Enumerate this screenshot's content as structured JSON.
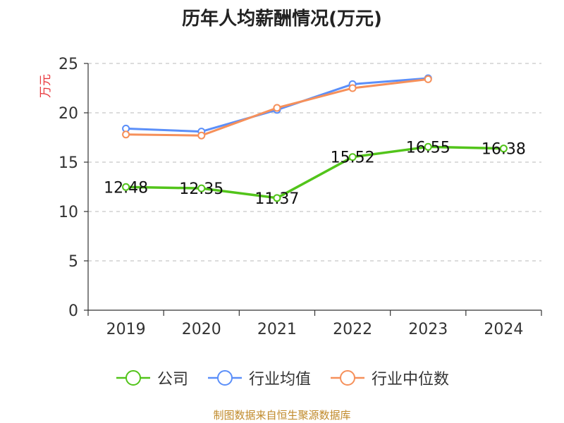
{
  "chart_data": {
    "type": "line",
    "title": "历年人均薪酬情况(万元)",
    "ylabel": "万元",
    "xlabel": "",
    "categories": [
      "2019",
      "2020",
      "2021",
      "2022",
      "2023",
      "2024"
    ],
    "ylim": [
      0,
      25
    ],
    "yticks": [
      0,
      5,
      10,
      15,
      20,
      25
    ],
    "grid": "horizontal-dashed",
    "legend_position": "bottom",
    "series": [
      {
        "name": "公司",
        "color": "#52c41a",
        "values": [
          12.48,
          12.35,
          11.37,
          15.52,
          16.55,
          16.38
        ],
        "labels": [
          "12.48",
          "12.35",
          "11.37",
          "15.52",
          "16.55",
          "16.38"
        ]
      },
      {
        "name": "行业均值",
        "color": "#5b8ff9",
        "values": [
          18.4,
          18.1,
          20.3,
          22.9,
          23.5,
          null
        ]
      },
      {
        "name": "行业中位数",
        "color": "#f6905a",
        "values": [
          17.8,
          17.7,
          20.5,
          22.5,
          23.4,
          null
        ]
      }
    ]
  },
  "source_note": "制图数据来自恒生聚源数据库",
  "ylabel_color": "#e8383d"
}
